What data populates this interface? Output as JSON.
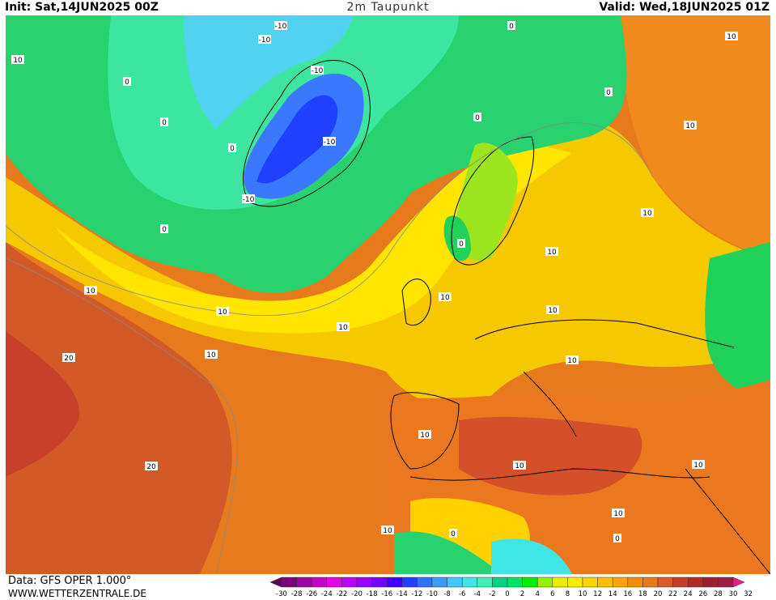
{
  "header": {
    "init": "Init: Sat,14JUN2025 00Z",
    "title": "2m Taupunkt",
    "valid": "Valid: Wed,18JUN2025 01Z"
  },
  "footer": {
    "data_source": "Data: GFS OPER 1.000°",
    "website": "WWW.WETTERZENTRALE.DE"
  },
  "contour_labels": [
    "-10",
    "0",
    "10",
    "20"
  ],
  "colorbar": {
    "ticks": [
      "-30",
      "-28",
      "-26",
      "-24",
      "-22",
      "-20",
      "-18",
      "-16",
      "-14",
      "-12",
      "-10",
      "-8",
      "-6",
      "-4",
      "-2",
      "0",
      "2",
      "4",
      "6",
      "8",
      "10",
      "12",
      "14",
      "16",
      "18",
      "20",
      "22",
      "24",
      "26",
      "28",
      "30",
      "32"
    ],
    "colors": [
      "#5a005a",
      "#7a007a",
      "#a000a0",
      "#c800c8",
      "#e600e6",
      "#c000ff",
      "#9a00ff",
      "#7000ff",
      "#4000ff",
      "#2040ff",
      "#3070ff",
      "#3a9cff",
      "#40c8ff",
      "#40e6e6",
      "#40f0b4",
      "#00d282",
      "#00e664",
      "#00f000",
      "#96f000",
      "#e6f000",
      "#ffeb00",
      "#ffd200",
      "#ffbe00",
      "#ffa500",
      "#f58c00",
      "#eb7814",
      "#dc5a28",
      "#c83c28",
      "#b42828",
      "#a01e32",
      "#a01e46",
      "#e61e8c"
    ]
  }
}
